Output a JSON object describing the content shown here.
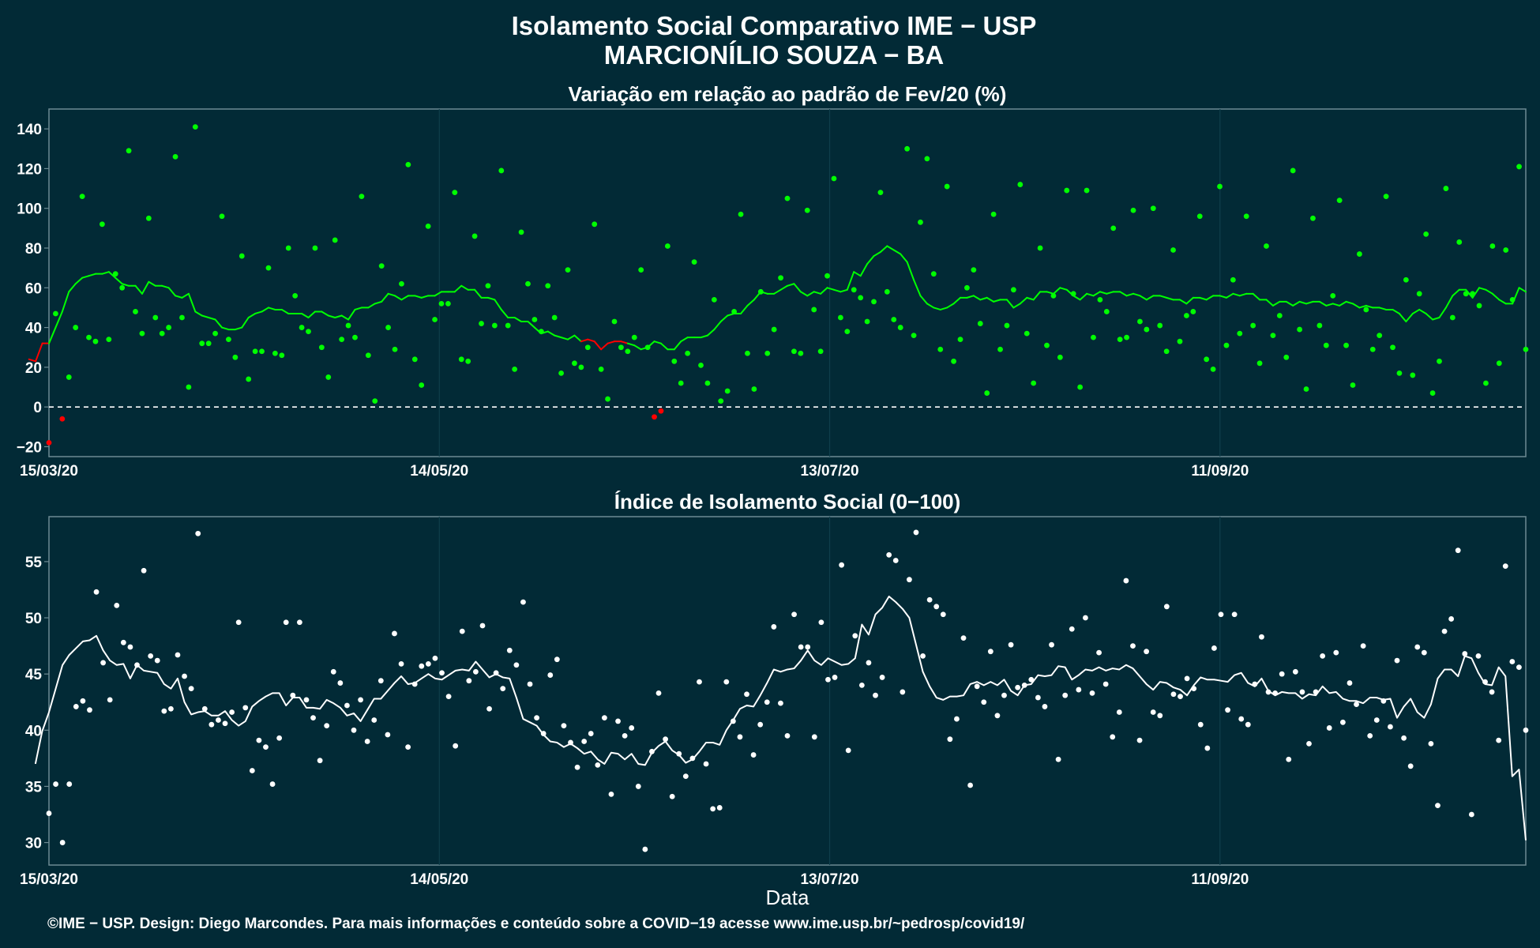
{
  "title_line1": "Isolamento Social Comparativo IME − USP",
  "title_line2": "MARCIONÍLIO SOUZA − BA",
  "xlabel": "Data",
  "footer": "©IME − USP. Design: Diego Marcondes. Para mais informações e conteúdo sobre a COVID−19 acesse www.ime.usp.br/~pedrosp/covid19/",
  "colors": {
    "background": "#022a36",
    "panel_border": "#6d8a93",
    "grid": "#0f3f4c",
    "positive": "#00ff00",
    "negative": "#ff0000",
    "index": "#ffffff"
  },
  "chart_data": [
    {
      "type": "scatter",
      "title": "Variação em relação ao padrão de Fev/20 (%)",
      "xlabel": "",
      "ylabel": "",
      "x_start": "2020-03-15",
      "x_end": "2020-10-28",
      "x_ticks": [
        "15/03/20",
        "14/05/20",
        "13/07/20",
        "11/09/20"
      ],
      "y_ticks": [
        -20,
        0,
        20,
        40,
        60,
        80,
        100,
        120,
        140
      ],
      "ylim": [
        -25,
        150
      ],
      "reference_line": 0,
      "series": [
        {
          "kind": "points",
          "values": [
            -18,
            47,
            -6,
            15,
            40,
            106,
            35,
            33,
            92,
            34,
            67,
            60,
            129,
            48,
            37,
            95,
            45,
            37,
            40,
            126,
            45,
            10,
            141,
            32,
            32,
            37,
            96,
            34,
            25,
            76,
            14,
            28,
            28,
            70,
            27,
            26,
            80,
            56,
            40,
            38,
            80,
            30,
            15,
            84,
            34,
            41,
            35,
            106,
            26,
            3,
            71,
            40,
            29,
            62,
            122,
            24,
            11,
            91,
            44,
            52,
            52,
            108,
            24,
            23,
            86,
            42,
            61,
            41,
            119,
            41,
            19,
            88,
            62,
            44,
            38,
            61,
            45,
            17,
            69,
            22,
            20,
            30,
            92,
            19,
            4,
            43,
            30,
            28,
            35,
            69,
            30,
            -5,
            -2,
            81,
            23,
            12,
            27,
            73,
            21,
            12,
            54,
            3,
            8,
            48,
            97,
            27,
            9,
            58,
            27,
            39,
            65,
            105,
            28,
            27,
            99,
            49,
            28,
            66,
            115,
            45,
            38,
            59,
            55,
            43,
            53,
            108,
            58,
            44,
            40,
            130,
            36,
            93,
            125,
            67,
            29,
            111,
            23,
            34,
            60,
            69,
            42,
            7,
            97,
            29,
            41,
            59,
            112,
            37,
            12,
            80,
            31,
            56,
            25,
            109,
            57,
            10,
            109,
            35,
            54,
            48,
            90,
            34,
            35,
            99,
            43,
            39,
            100,
            41,
            28,
            79,
            33,
            46,
            48,
            96,
            24,
            19,
            111,
            31,
            64,
            37,
            96,
            41,
            22,
            81,
            36,
            46,
            25,
            119,
            39,
            9,
            95,
            41,
            31,
            56,
            104,
            31,
            11,
            77,
            49,
            29,
            36,
            106,
            30,
            17,
            64,
            16,
            57,
            87,
            7,
            23,
            110,
            45,
            83,
            57,
            57,
            51,
            12,
            81,
            22,
            79,
            54,
            121,
            29
          ]
        },
        {
          "kind": "line",
          "values": [
            24,
            23,
            32,
            32,
            40,
            48,
            58,
            62,
            65,
            66,
            67,
            67,
            68,
            65,
            62,
            61,
            61,
            57,
            63,
            61,
            61,
            60,
            56,
            55,
            57,
            48,
            46,
            45,
            44,
            40,
            39,
            39,
            40,
            45,
            47,
            48,
            50,
            49,
            49,
            47,
            47,
            47,
            45,
            48,
            48,
            46,
            45,
            46,
            44,
            49,
            50,
            50,
            52,
            53,
            57,
            56,
            54,
            56,
            56,
            55,
            56,
            56,
            58,
            58,
            58,
            61,
            59,
            59,
            55,
            55,
            54,
            49,
            45,
            45,
            43,
            43,
            40,
            37,
            38,
            36,
            35,
            34,
            36,
            33,
            34,
            33,
            29,
            32,
            33,
            33,
            32,
            31,
            29,
            30,
            33,
            32,
            29,
            29,
            33,
            35,
            35,
            35,
            36,
            39,
            43,
            46,
            47,
            47,
            51,
            54,
            58,
            57,
            57,
            59,
            61,
            62,
            58,
            56,
            58,
            57,
            60,
            59,
            58,
            59,
            68,
            66,
            72,
            76,
            78,
            81,
            79,
            77,
            73,
            64,
            56,
            52,
            50,
            49,
            50,
            52,
            55,
            55,
            56,
            54,
            55,
            53,
            54,
            54,
            50,
            52,
            55,
            54,
            58,
            58,
            57,
            60,
            59,
            56,
            54,
            57,
            56,
            58,
            57,
            58,
            58,
            56,
            57,
            56,
            54,
            56,
            56,
            55,
            54,
            54,
            52,
            55,
            55,
            54,
            56,
            56,
            55,
            57,
            56,
            57,
            57,
            54,
            54,
            51,
            53,
            53,
            51,
            53,
            52,
            53,
            53,
            51,
            52,
            51,
            53,
            52,
            50,
            51,
            50,
            50,
            49,
            49,
            47,
            43,
            47,
            49,
            47,
            44,
            45,
            50,
            56,
            59,
            59,
            55,
            60,
            59,
            57,
            54,
            52,
            52,
            60,
            58
          ]
        }
      ]
    },
    {
      "type": "scatter",
      "title": "Índice de Isolamento Social (0−100)",
      "xlabel": "Data",
      "ylabel": "",
      "x_start": "2020-03-15",
      "x_end": "2020-10-28",
      "x_ticks": [
        "15/03/20",
        "14/05/20",
        "13/07/20",
        "11/09/20"
      ],
      "y_ticks": [
        30,
        35,
        40,
        45,
        50,
        55
      ],
      "ylim": [
        28,
        59
      ],
      "series": [
        {
          "kind": "points",
          "values": [
            32.6,
            35.2,
            30.0,
            35.2,
            42.1,
            42.6,
            41.8,
            52.3,
            46.0,
            42.7,
            51.1,
            47.8,
            47.4,
            45.8,
            54.2,
            46.6,
            46.2,
            41.7,
            41.9,
            46.7,
            44.8,
            43.7,
            57.5,
            41.9,
            40.5,
            40.9,
            40.6,
            41.6,
            49.6,
            42.0,
            36.4,
            39.1,
            38.5,
            35.2,
            39.3,
            49.6,
            43.1,
            49.6,
            42.7,
            41.1,
            37.3,
            40.4,
            45.2,
            44.2,
            42.2,
            40.0,
            42.7,
            39.0,
            40.9,
            44.4,
            39.6,
            48.6,
            45.9,
            38.5,
            44.1,
            45.7,
            45.9,
            46.4,
            45.1,
            43.0,
            38.6,
            48.8,
            44.4,
            45.2,
            49.3,
            41.9,
            45.1,
            43.7,
            47.1,
            45.8,
            51.4,
            44.1,
            41.1,
            39.7,
            44.9,
            46.3,
            40.4,
            38.9,
            36.7,
            39.0,
            39.7,
            36.9,
            41.1,
            34.3,
            40.8,
            39.5,
            40.2,
            35.0,
            29.4,
            38.1,
            43.3,
            39.2,
            34.1,
            37.9,
            35.9,
            37.5,
            44.3,
            37.0,
            33.0,
            33.1,
            44.3,
            40.8,
            39.4,
            43.2,
            37.8,
            40.5,
            42.5,
            49.2,
            42.4,
            39.5,
            50.3,
            47.4,
            47.4,
            39.4,
            49.6,
            44.5,
            44.7,
            54.7,
            38.2,
            48.4,
            44.0,
            46.0,
            43.1,
            44.7,
            55.6,
            55.1,
            43.4,
            53.4,
            57.6,
            46.6,
            51.6,
            51.0,
            50.3,
            39.2,
            41.0,
            48.2,
            35.1,
            43.9,
            42.5,
            47.0,
            41.3,
            43.1,
            47.6,
            43.8,
            44.0,
            44.5,
            42.9,
            42.1,
            47.6,
            37.4,
            43.1,
            49.0,
            43.6,
            50.0,
            43.3,
            46.9,
            44.1,
            39.4,
            41.6,
            53.3,
            47.5,
            39.1,
            47.0,
            41.6,
            41.3,
            51.0,
            43.2,
            43.0,
            44.6,
            43.7,
            40.5,
            38.4,
            47.3,
            50.3,
            41.8,
            50.3,
            41.0,
            40.5,
            44.1,
            48.3,
            43.4,
            43.3,
            45.0,
            37.4,
            45.2,
            43.4,
            38.8,
            43.4,
            46.6,
            40.2,
            46.9,
            40.7,
            44.2,
            42.3,
            47.5,
            39.5,
            40.9,
            42.6,
            40.3,
            46.2,
            39.3,
            36.8,
            47.4,
            46.9,
            38.8,
            33.3,
            48.8,
            49.9,
            56.0,
            46.8,
            32.5,
            46.6,
            44.3,
            43.4,
            39.1,
            54.6,
            46.1,
            45.6,
            40.0
          ]
        },
        {
          "kind": "line",
          "values": [
            37.0,
            39.9,
            41.6,
            43.7,
            45.8,
            46.7,
            47.3,
            47.9,
            48.0,
            48.4,
            47.1,
            46.2,
            45.8,
            45.9,
            44.6,
            45.8,
            45.3,
            45.2,
            45.1,
            44.1,
            43.7,
            44.6,
            42.5,
            41.4,
            41.6,
            41.7,
            41.3,
            41.3,
            41.7,
            40.9,
            40.4,
            40.8,
            42.1,
            42.6,
            43.0,
            43.3,
            43.3,
            42.2,
            42.9,
            42.9,
            42.0,
            42.0,
            41.9,
            42.7,
            42.4,
            42.0,
            41.3,
            41.5,
            40.8,
            41.8,
            42.8,
            42.8,
            43.5,
            44.2,
            44.8,
            44.1,
            44.2,
            44.6,
            45.0,
            44.6,
            44.5,
            44.9,
            45.3,
            45.4,
            45.3,
            46.1,
            45.4,
            44.7,
            45.0,
            44.7,
            44.6,
            42.9,
            41.0,
            40.7,
            40.4,
            39.6,
            39.0,
            38.9,
            38.5,
            38.8,
            38.4,
            37.9,
            38.1,
            37.4,
            37.0,
            38.0,
            37.9,
            37.4,
            37.9,
            37.0,
            36.9,
            38.0,
            38.6,
            39.0,
            38.2,
            37.8,
            37.1,
            37.4,
            38.1,
            38.9,
            38.9,
            38.7,
            40.0,
            40.9,
            41.9,
            42.2,
            42.1,
            43.1,
            44.2,
            45.4,
            45.2,
            45.4,
            45.5,
            46.2,
            47.1,
            46.2,
            45.8,
            46.4,
            46.1,
            45.8,
            45.9,
            46.4,
            49.4,
            48.5,
            50.3,
            50.9,
            51.9,
            51.4,
            50.8,
            50.0,
            47.6,
            45.2,
            43.9,
            42.9,
            42.7,
            43.0,
            43.0,
            43.1,
            44.1,
            44.3,
            44.0,
            44.3,
            44.0,
            44.5,
            43.5,
            43.1,
            44.0,
            44.1,
            44.9,
            44.8,
            44.9,
            45.7,
            45.6,
            44.5,
            44.9,
            45.4,
            45.3,
            45.6,
            45.3,
            45.5,
            45.4,
            45.8,
            45.5,
            44.8,
            44.1,
            43.6,
            44.3,
            44.2,
            43.8,
            43.6,
            43.1,
            44.0,
            44.7,
            44.5,
            44.5,
            44.4,
            44.3,
            44.9,
            45.1,
            44.2,
            43.9,
            44.6,
            43.5,
            43.1,
            43.4,
            43.3,
            43.3,
            42.8,
            43.2,
            43.1,
            43.9,
            43.3,
            43.4,
            42.8,
            42.6,
            42.6,
            42.4,
            42.9,
            42.9,
            42.7,
            42.8,
            41.1,
            42.1,
            42.8,
            41.6,
            41.1,
            42.3,
            44.6,
            45.4,
            45.4,
            44.8,
            46.6,
            46.4,
            45.1,
            44.1,
            44.0,
            45.6,
            44.8,
            35.9,
            36.5,
            30.2
          ]
        }
      ]
    }
  ]
}
